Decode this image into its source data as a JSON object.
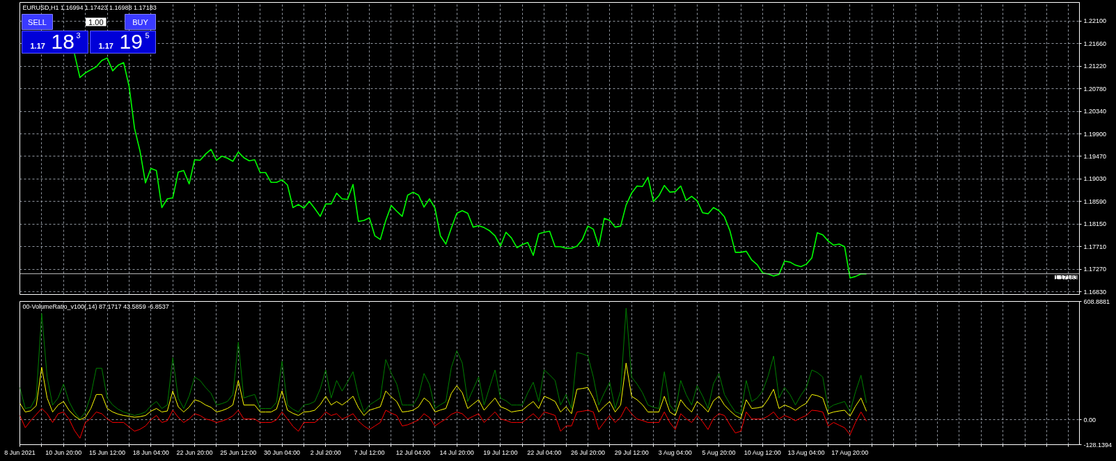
{
  "chart_data": [
    {
      "type": "line",
      "title": "EURUSD,H1 1.16994 1.17423 1.16988 1.17183",
      "annotations": [
        "SELL",
        "1.00",
        "BUY",
        "1.17",
        "18",
        "3",
        "1.17",
        "19",
        "5"
      ],
      "categories": [
        null,
        null,
        null,
        null,
        null,
        null,
        null,
        null,
        null,
        null,
        null,
        null,
        null,
        null,
        null,
        null,
        null,
        null,
        null,
        null,
        null,
        null,
        null,
        null,
        null,
        null,
        null,
        null,
        null,
        null,
        null,
        null,
        null,
        null,
        null,
        null,
        null,
        null,
        null,
        null,
        null,
        null,
        null,
        null,
        null,
        null,
        null,
        null,
        null,
        null,
        null,
        null,
        null,
        null,
        null,
        null,
        null,
        null,
        null,
        null,
        null,
        null,
        null,
        null,
        null,
        null,
        null,
        null,
        null,
        null,
        null,
        null,
        null,
        null,
        null,
        null,
        null,
        null,
        null,
        null,
        null,
        null,
        null,
        null,
        null,
        null,
        null,
        null,
        null,
        null,
        null,
        null,
        null,
        null,
        null,
        null,
        null,
        null,
        null,
        null,
        null,
        null,
        null,
        null,
        null,
        null,
        null,
        null,
        null,
        null,
        null,
        null,
        null,
        null,
        null,
        null,
        null,
        null,
        null,
        null,
        null,
        null,
        null,
        null,
        null,
        null,
        null,
        null,
        null,
        null,
        null,
        null,
        null,
        null,
        null,
        null,
        null,
        null,
        null,
        null,
        null,
        null,
        null,
        null,
        null,
        null,
        null,
        null,
        null,
        null,
        null,
        null,
        null,
        null,
        null,
        null,
        null,
        null,
        null,
        null,
        null,
        null,
        null,
        null,
        null,
        null,
        null,
        null,
        null,
        null,
        null,
        null,
        null,
        null,
        null,
        null,
        null,
        null,
        null,
        null,
        null,
        null,
        null,
        null,
        null,
        null,
        null,
        null,
        null,
        null,
        null,
        null,
        null,
        null,
        null
      ],
      "series": [
        {
          "color": "#00ff00",
          "values": [
            null,
            null,
            null,
            null,
            null,
            null,
            null,
            null,
            null,
            null,
            1.2146,
            1.21,
            1.2109,
            1.2115,
            1.2121,
            1.2133,
            1.2138,
            1.2113,
            1.2124,
            1.2129,
            1.2083,
            1.2001,
            1.1957,
            1.1895,
            1.1923,
            1.1919,
            1.1847,
            1.1864,
            1.1866,
            1.1916,
            1.1919,
            1.1893,
            1.194,
            1.1939,
            1.1951,
            1.196,
            1.1939,
            1.1947,
            1.1943,
            1.1937,
            1.1955,
            1.1944,
            1.1938,
            1.194,
            1.1915,
            1.1915,
            1.1896,
            1.1896,
            1.1901,
            1.1891,
            1.1847,
            1.1853,
            1.1846,
            1.1859,
            1.1845,
            1.183,
            1.1854,
            1.1854,
            1.1875,
            1.1864,
            1.1863,
            1.1892,
            1.182,
            1.1822,
            1.1827,
            1.1792,
            1.1785,
            1.1822,
            1.1851,
            1.184,
            1.183,
            1.1871,
            1.1877,
            1.1871,
            1.1848,
            1.1864,
            1.1846,
            1.1792,
            1.1776,
            1.1807,
            1.1836,
            1.1841,
            1.1836,
            1.1809,
            1.1812,
            1.1808,
            1.1802,
            1.1792,
            1.1772,
            1.1799,
            1.1788,
            1.1769,
            1.1775,
            1.1779,
            1.1754,
            1.1796,
            1.1799,
            1.1801,
            1.1771,
            1.1771,
            1.1768,
            1.1768,
            1.1772,
            1.1785,
            1.1811,
            1.1805,
            1.1772,
            1.1826,
            1.1822,
            1.1809,
            1.1811,
            1.1852,
            1.1875,
            1.1889,
            1.1888,
            1.1906,
            1.1859,
            1.187,
            1.189,
            1.1877,
            1.1878,
            1.1889,
            1.1861,
            1.1869,
            1.186,
            1.1837,
            1.1835,
            1.1847,
            1.1841,
            1.1829,
            1.1802,
            1.176,
            1.176,
            1.1762,
            1.1745,
            1.1736,
            1.172,
            1.1718,
            1.1714,
            1.1717,
            1.1743,
            1.1741,
            1.1735,
            1.1732,
            1.1737,
            1.1749,
            1.1798,
            1.1794,
            1.1782,
            1.1774,
            1.1776,
            1.1771,
            1.171,
            1.1713,
            1.1718,
            1.1718,
            null,
            null,
            null,
            null,
            null,
            null,
            null,
            null,
            null,
            null,
            null,
            null,
            null,
            null,
            null,
            null,
            null,
            null,
            null,
            null,
            null,
            null,
            null,
            null,
            null,
            null,
            null,
            null,
            null,
            null,
            null,
            null,
            null,
            null,
            null,
            null,
            null,
            null,
            null
          ]
        }
      ],
      "ylim": [
        1.1678,
        1.2246
      ],
      "yticks": [
        {
          "value": 1.221,
          "label": "1.22100"
        },
        {
          "value": 1.2166,
          "label": "1.21660"
        },
        {
          "value": 1.2122,
          "label": "1.21220"
        },
        {
          "value": 1.2078,
          "label": "1.20780"
        },
        {
          "value": 1.2034,
          "label": "1.20340"
        },
        {
          "value": 1.199,
          "label": "1.19900"
        },
        {
          "value": 1.1947,
          "label": "1.19470"
        },
        {
          "value": 1.1903,
          "label": "1.19030"
        },
        {
          "value": 1.1859,
          "label": "1.18590"
        },
        {
          "value": 1.1815,
          "label": "1.18150"
        },
        {
          "value": 1.1771,
          "label": "1.17710"
        },
        {
          "value": 1.1727,
          "label": "1.17270"
        },
        {
          "value": 1.1683,
          "label": "1.16830"
        }
      ],
      "ref_lines": [
        {
          "axis": "y",
          "value": 1.17183,
          "label": "1.17183",
          "color": "#c0c0c0"
        }
      ],
      "grid": true,
      "tick_labels": "y"
    },
    {
      "type": "line",
      "title": "00-VolumeRatio_v100(,14) 87.1717 43.5859 -6.8537",
      "categories": [
        "8 Jun 2021",
        null,
        null,
        null,
        null,
        null,
        null,
        null,
        "10 Jun 20:00",
        null,
        null,
        null,
        null,
        null,
        null,
        null,
        "15 Jun 12:00",
        null,
        null,
        null,
        null,
        null,
        null,
        null,
        "18 Jun 04:00",
        null,
        null,
        null,
        null,
        null,
        null,
        null,
        "22 Jun 20:00",
        null,
        null,
        null,
        null,
        null,
        null,
        null,
        "25 Jun 12:00",
        null,
        null,
        null,
        null,
        null,
        null,
        null,
        "30 Jun 04:00",
        null,
        null,
        null,
        null,
        null,
        null,
        null,
        "2 Jul 20:00",
        null,
        null,
        null,
        null,
        null,
        null,
        null,
        "7 Jul 12:00",
        null,
        null,
        null,
        null,
        null,
        null,
        null,
        "12 Jul 04:00",
        null,
        null,
        null,
        null,
        null,
        null,
        null,
        "14 Jul 20:00",
        null,
        null,
        null,
        null,
        null,
        null,
        null,
        "19 Jul 12:00",
        null,
        null,
        null,
        null,
        null,
        null,
        null,
        "22 Jul 04:00",
        null,
        null,
        null,
        null,
        null,
        null,
        null,
        "26 Jul 20:00",
        null,
        null,
        null,
        null,
        null,
        null,
        null,
        "29 Jul 12:00",
        null,
        null,
        null,
        null,
        null,
        null,
        null,
        "3 Aug 04:00",
        null,
        null,
        null,
        null,
        null,
        null,
        null,
        "5 Aug 20:00",
        null,
        null,
        null,
        null,
        null,
        null,
        null,
        "10 Aug 12:00",
        null,
        null,
        null,
        null,
        null,
        null,
        null,
        "13 Aug 04:00",
        null,
        null,
        null,
        null,
        null,
        null,
        null,
        "17 Aug 20:00",
        null,
        null,
        null,
        null,
        null,
        null,
        null,
        null,
        null,
        null,
        null,
        null,
        null,
        null,
        null,
        null,
        null,
        null,
        null,
        null,
        null,
        null,
        null,
        null,
        null,
        null,
        null,
        null,
        null,
        null,
        null,
        null,
        null,
        null,
        null,
        null,
        null,
        null,
        null,
        null,
        null,
        null
      ],
      "series": [
        {
          "color": "#008000",
          "values": [
            166,
            58,
            64,
            117,
            547,
            220,
            76,
            112,
            184,
            94,
            40,
            4,
            40,
            126,
            265,
            265,
            112,
            76,
            54,
            40,
            31,
            22,
            29,
            40,
            72,
            94,
            58,
            76,
            319,
            112,
            58,
            123,
            220,
            202,
            166,
            136,
            76,
            83,
            94,
            130,
            400,
            112,
            122,
            130,
            58,
            58,
            58,
            90,
            301,
            76,
            54,
            40,
            76,
            81,
            94,
            159,
            256,
            112,
            202,
            148,
            194,
            247,
            123,
            40,
            76,
            94,
            112,
            310,
            239,
            184,
            76,
            76,
            76,
            123,
            238,
            182,
            58,
            77,
            94,
            269,
            355,
            292,
            94,
            157,
            220,
            76,
            166,
            256,
            112,
            98,
            76,
            76,
            76,
            139,
            193,
            94,
            256,
            231,
            202,
            76,
            130,
            58,
            346,
            339,
            328,
            220,
            76,
            138,
            193,
            58,
            148,
            574,
            220,
            184,
            139,
            76,
            64,
            58,
            247,
            76,
            40,
            202,
            129,
            76,
            175,
            122,
            58,
            186,
            238,
            130,
            82,
            40,
            31,
            202,
            94,
            112,
            148,
            225,
            328,
            112,
            166,
            130,
            76,
            126,
            166,
            256,
            243,
            220,
            58,
            76,
            85,
            94,
            40,
            144,
            229,
            87,
            null,
            null,
            null,
            null,
            null,
            null,
            null,
            null,
            null,
            null,
            null,
            null,
            null,
            null,
            null,
            null,
            null,
            null,
            null,
            null,
            null,
            null,
            null,
            null,
            null,
            null,
            null,
            null,
            null,
            null,
            null,
            null,
            null,
            null,
            null,
            null,
            null,
            null,
            null
          ]
        },
        {
          "color": "#ffff00",
          "values": [
            85,
            40,
            46,
            72,
            270,
            112,
            40,
            76,
            94,
            49,
            20,
            0,
            13,
            58,
            130,
            130,
            58,
            40,
            29,
            22,
            18,
            13,
            16,
            22,
            44,
            58,
            40,
            45,
            148,
            67,
            40,
            65,
            103,
            94,
            76,
            64,
            40,
            47,
            58,
            76,
            202,
            76,
            76,
            76,
            40,
            40,
            40,
            55,
            148,
            49,
            33,
            22,
            40,
            42,
            49,
            78,
            121,
            76,
            94,
            76,
            97,
            121,
            62,
            22,
            49,
            58,
            67,
            148,
            118,
            94,
            40,
            43,
            49,
            67,
            112,
            90,
            40,
            50,
            58,
            136,
            175,
            139,
            58,
            81,
            103,
            49,
            81,
            112,
            67,
            56,
            40,
            45,
            49,
            73,
            94,
            58,
            121,
            109,
            94,
            40,
            67,
            31,
            157,
            161,
            166,
            112,
            40,
            69,
            94,
            40,
            76,
            292,
            121,
            103,
            77,
            40,
            40,
            40,
            121,
            40,
            22,
            103,
            66,
            40,
            94,
            70,
            40,
            98,
            121,
            76,
            47,
            22,
            7,
            103,
            58,
            61,
            67,
            106,
            157,
            58,
            76,
            65,
            49,
            69,
            85,
            130,
            124,
            112,
            31,
            40,
            45,
            49,
            18,
            70,
            112,
            44,
            null,
            null,
            null,
            null,
            null,
            null,
            null,
            null,
            null,
            null,
            null,
            null,
            null,
            null,
            null,
            null,
            null,
            null,
            null,
            null,
            null,
            null,
            null,
            null,
            null,
            null,
            null,
            null,
            null,
            null,
            null,
            null,
            null,
            null,
            null,
            null,
            null,
            null,
            null
          ]
        },
        {
          "color": "#ff0000",
          "values": [
            22,
            -41,
            -4,
            27,
            58,
            31,
            -14,
            31,
            40,
            4,
            -55,
            -95,
            -14,
            7,
            40,
            31,
            4,
            -14,
            -14,
            -14,
            -37,
            -59,
            -49,
            -32,
            0,
            22,
            -14,
            -5,
            49,
            13,
            -14,
            4,
            31,
            22,
            4,
            -2,
            -14,
            -7,
            4,
            20,
            49,
            4,
            4,
            4,
            -14,
            -14,
            -14,
            0,
            40,
            4,
            -34,
            -59,
            -14,
            -14,
            -14,
            8,
            40,
            22,
            31,
            4,
            16,
            31,
            -7,
            -32,
            -50,
            -32,
            -14,
            49,
            34,
            22,
            -32,
            -26,
            -14,
            -1,
            31,
            11,
            -32,
            -13,
            4,
            28,
            40,
            31,
            4,
            18,
            31,
            -14,
            13,
            40,
            4,
            -3,
            -14,
            -14,
            -14,
            10,
            31,
            4,
            40,
            32,
            22,
            -59,
            -32,
            -32,
            40,
            44,
            49,
            40,
            -50,
            -12,
            22,
            -14,
            13,
            67,
            31,
            4,
            -4,
            -14,
            -14,
            -14,
            40,
            -14,
            -50,
            31,
            5,
            -14,
            22,
            -10,
            -50,
            8,
            31,
            22,
            -26,
            -68,
            -59,
            40,
            4,
            4,
            4,
            19,
            40,
            4,
            22,
            11,
            -5,
            10,
            22,
            49,
            46,
            40,
            -32,
            -14,
            -28,
            -41,
            -77,
            -13,
            40,
            -7,
            null,
            null,
            null,
            null,
            null,
            null,
            null,
            null,
            null,
            null,
            null,
            null,
            null,
            null,
            null,
            null,
            null,
            null,
            null,
            null,
            null,
            null,
            null,
            null,
            null,
            null,
            null,
            null,
            null,
            null,
            null,
            null,
            null,
            null,
            null,
            null,
            null,
            null,
            null
          ]
        }
      ],
      "ylim": [
        -128.1394,
        608.8881
      ],
      "yticks": [
        608.8881,
        {
          "value": 0,
          "label": "0.00"
        },
        -128.1394
      ],
      "grid": true
    }
  ]
}
